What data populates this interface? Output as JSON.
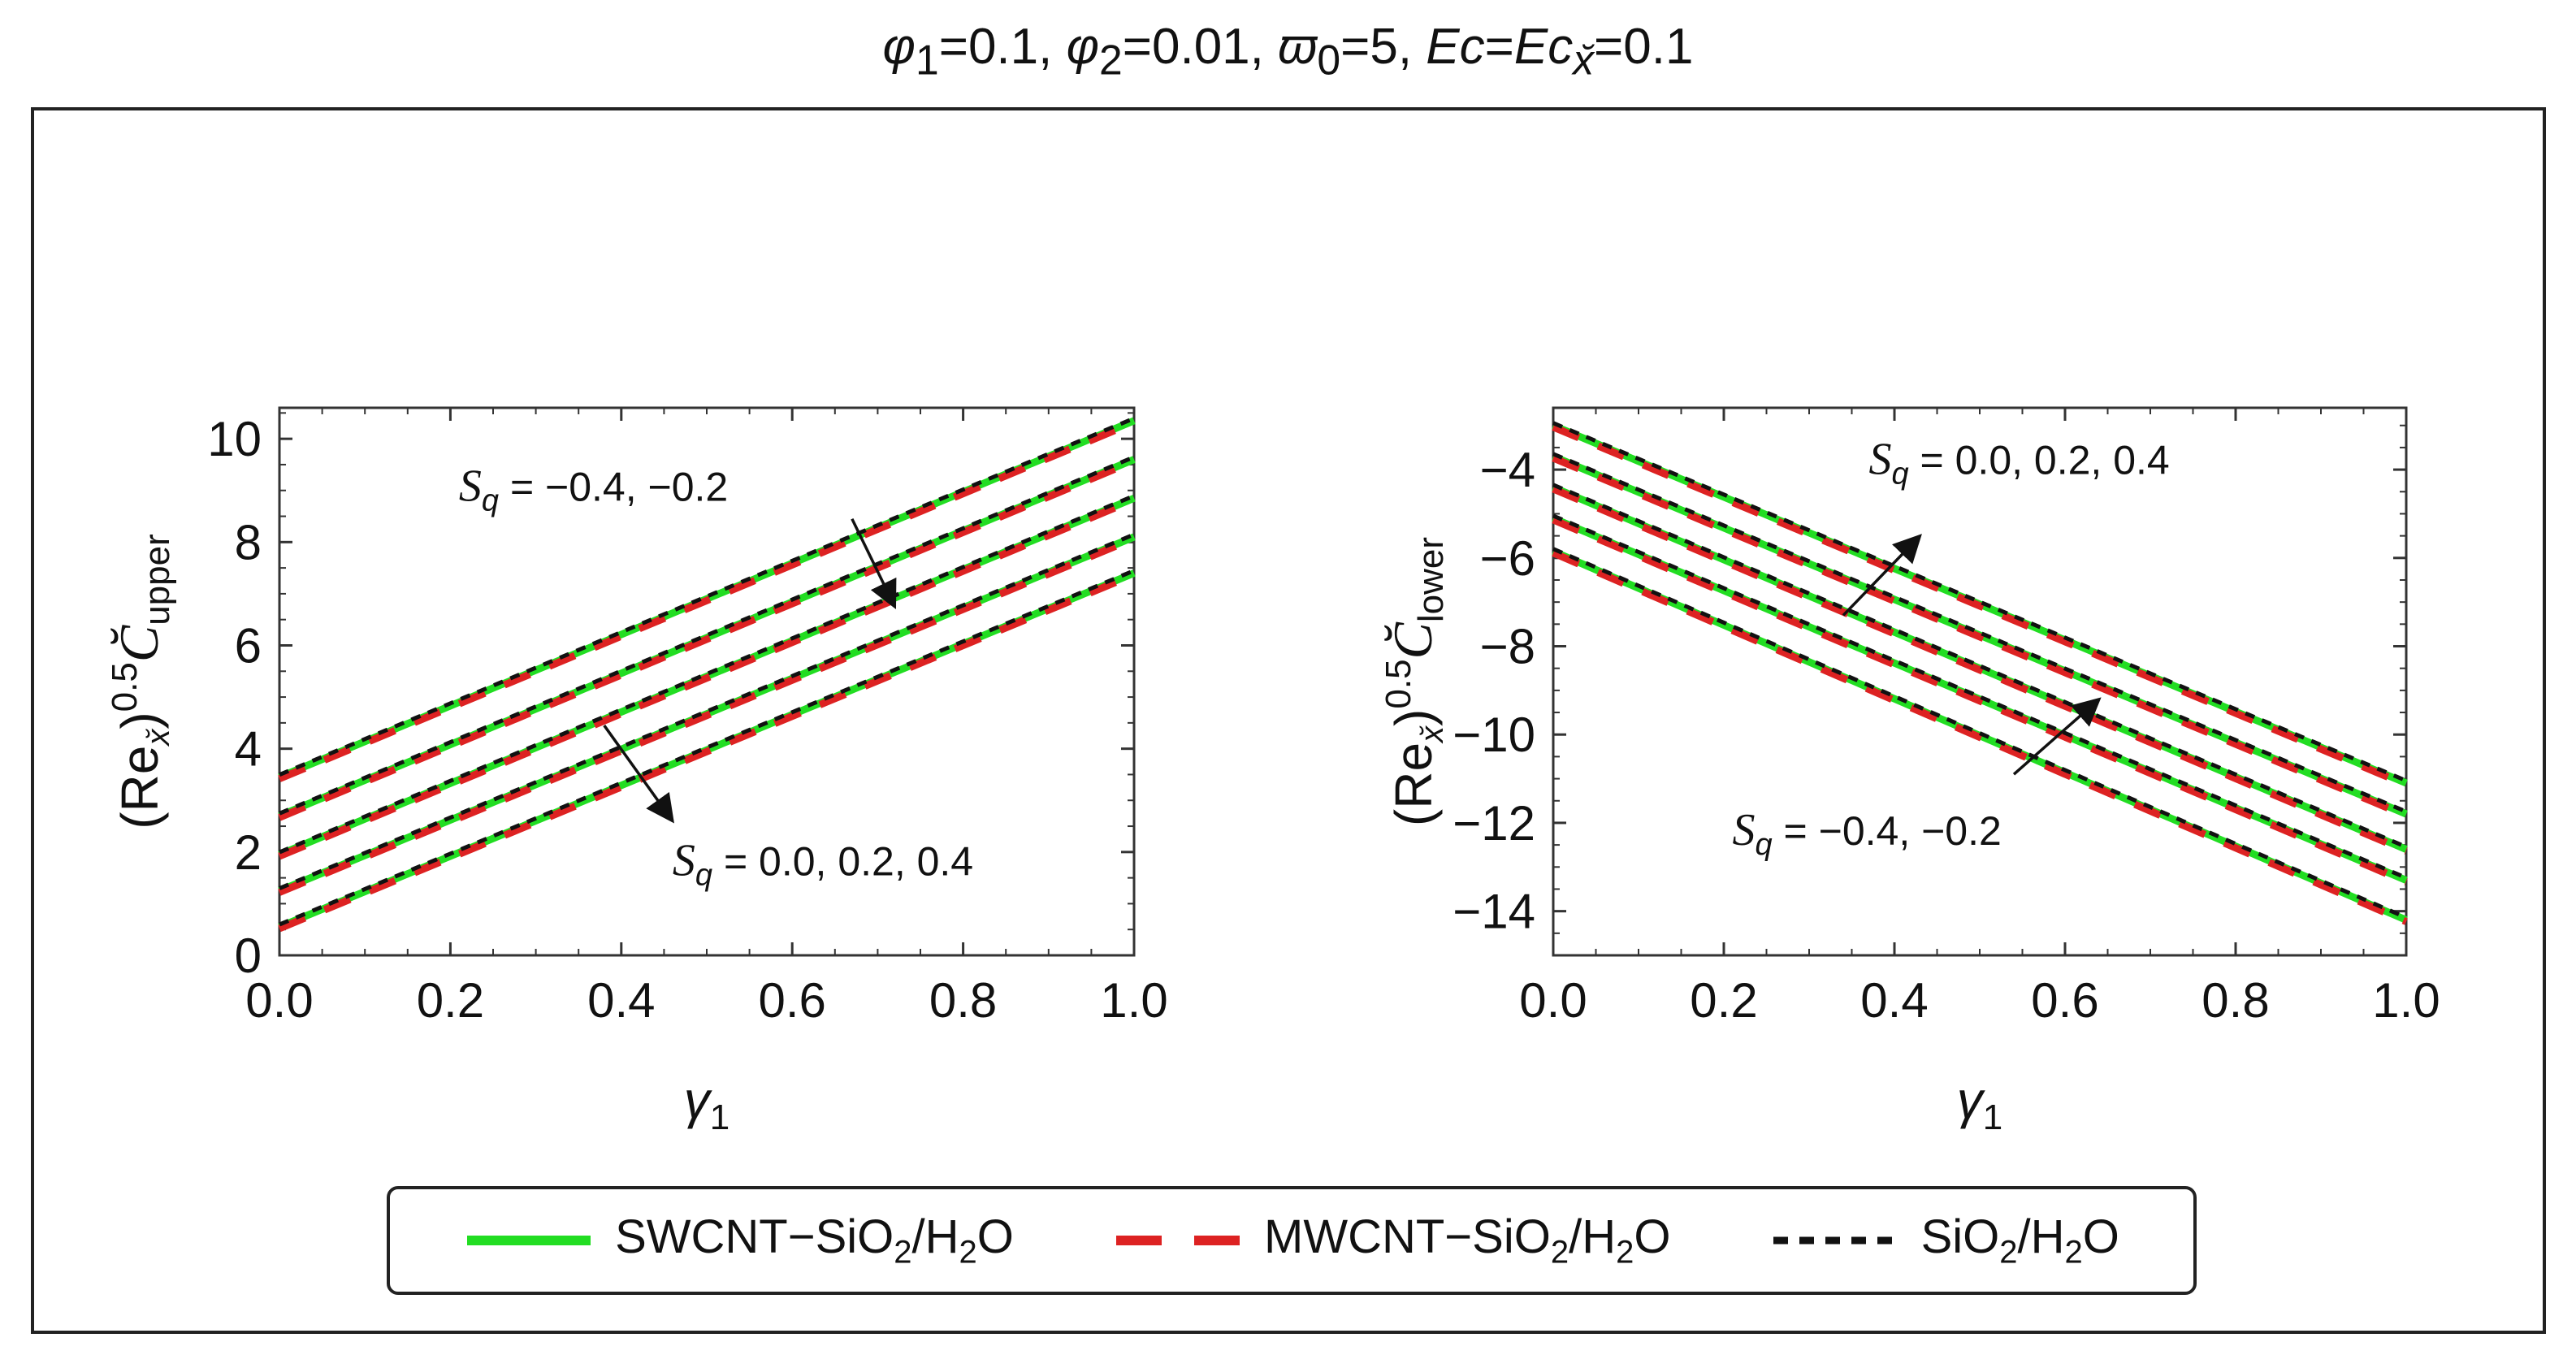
{
  "figure": {
    "title_parts": {
      "phi1_sym": "φ",
      "phi1_sub": "1",
      "phi1_val": "=0.1, ",
      "phi2_sym": "φ",
      "phi2_sub": "2",
      "phi2_val": "=0.01, ",
      "omega_sym": "ϖ",
      "omega_sub": "0",
      "omega_val": "=5, ",
      "ec_sym": "Ec",
      "ec_eq": "=",
      "ecx_sym": "Ec",
      "ecx_sub": "x̆",
      "ecx_val": "=0.1"
    }
  },
  "legend": [
    {
      "label_pre": "SWCNT−SiO",
      "label_sub1": "2",
      "label_mid": "/H",
      "label_sub2": "2",
      "label_post": "O",
      "color": "#22dd22",
      "style": "solid"
    },
    {
      "label_pre": "MWCNT−SiO",
      "label_sub1": "2",
      "label_mid": "/H",
      "label_sub2": "2",
      "label_post": "O",
      "color": "#dd2222",
      "style": "longdash"
    },
    {
      "label_pre": "SiO",
      "label_sub1": "2",
      "label_mid": "/H",
      "label_sub2": "2",
      "label_post": "O",
      "color": "#111111",
      "style": "shortdash"
    }
  ],
  "chart_data": [
    {
      "type": "line",
      "xlabel": "γ",
      "xlabel_sub": "1",
      "ylabel_re": "(Re",
      "ylabel_re_sub": "x̆",
      "ylabel_close": ")",
      "ylabel_exp": "0.5",
      "ylabel_c": "C̆",
      "ylabel_c_sub": "upper",
      "xlim": [
        0,
        1
      ],
      "ylim": [
        0,
        10.6
      ],
      "xticks": [
        "0.0",
        "0.2",
        "0.4",
        "0.6",
        "0.8",
        "1.0"
      ],
      "yticks": [
        "0",
        "2",
        "4",
        "6",
        "8",
        "10"
      ],
      "ytick_values": [
        0,
        2,
        4,
        6,
        8,
        10
      ],
      "x": [
        0,
        1
      ],
      "curves": [
        {
          "Sq": "-0.4",
          "y": [
            3.45,
            10.35
          ]
        },
        {
          "Sq": "-0.2",
          "y": [
            2.7,
            9.6
          ]
        },
        {
          "Sq": "0.0",
          "y": [
            1.95,
            8.85
          ]
        },
        {
          "Sq": "0.2",
          "y": [
            1.25,
            8.1
          ]
        },
        {
          "Sq": "0.4",
          "y": [
            0.55,
            7.4
          ]
        }
      ],
      "annotations": [
        {
          "text_sym": "S",
          "text_sub": "q",
          "text_val": " = −0.4, −0.2",
          "text_at": [
            0.21,
            8.8
          ],
          "arrow_from": [
            0.67,
            8.45
          ],
          "arrow_to": [
            0.72,
            6.75
          ]
        },
        {
          "text_sym": "S",
          "text_sub": "q",
          "text_val": " = 0.0, 0.2, 0.4",
          "text_at": [
            0.46,
            1.55
          ],
          "arrow_from": [
            0.38,
            4.45
          ],
          "arrow_to": [
            0.46,
            2.6
          ]
        }
      ]
    },
    {
      "type": "line",
      "xlabel": "γ",
      "xlabel_sub": "1",
      "ylabel_re": "(Re",
      "ylabel_re_sub": "x̆",
      "ylabel_close": ")",
      "ylabel_exp": "0.5",
      "ylabel_c": "C̆",
      "ylabel_c_sub": "lower",
      "xlim": [
        0,
        1
      ],
      "ylim": [
        -15,
        -2.6
      ],
      "xticks": [
        "0.0",
        "0.2",
        "0.4",
        "0.6",
        "0.8",
        "1.0"
      ],
      "yticks": [
        "−4",
        "−6",
        "−8",
        "−10",
        "−12",
        "−14"
      ],
      "ytick_values": [
        -4,
        -6,
        -8,
        -10,
        -12,
        -14
      ],
      "x": [
        0,
        1
      ],
      "curves": [
        {
          "Sq": "0.4",
          "y": [
            -3.0,
            -11.1
          ]
        },
        {
          "Sq": "0.2",
          "y": [
            -3.7,
            -11.8
          ]
        },
        {
          "Sq": "0.0",
          "y": [
            -4.4,
            -12.6
          ]
        },
        {
          "Sq": "-0.2",
          "y": [
            -5.1,
            -13.3
          ]
        },
        {
          "Sq": "-0.4",
          "y": [
            -5.85,
            -14.2
          ]
        }
      ],
      "annotations": [
        {
          "text_sym": "S",
          "text_sub": "q",
          "text_val": " = 0.0, 0.2, 0.4",
          "text_at": [
            0.37,
            -4.1
          ],
          "arrow_from": [
            0.34,
            -7.3
          ],
          "arrow_to": [
            0.43,
            -5.5
          ]
        },
        {
          "text_sym": "S",
          "text_sub": "q",
          "text_val": " = −0.4, −0.2",
          "text_at": [
            0.21,
            -12.5
          ],
          "arrow_from": [
            0.54,
            -10.9
          ],
          "arrow_to": [
            0.64,
            -9.2
          ]
        }
      ]
    }
  ]
}
